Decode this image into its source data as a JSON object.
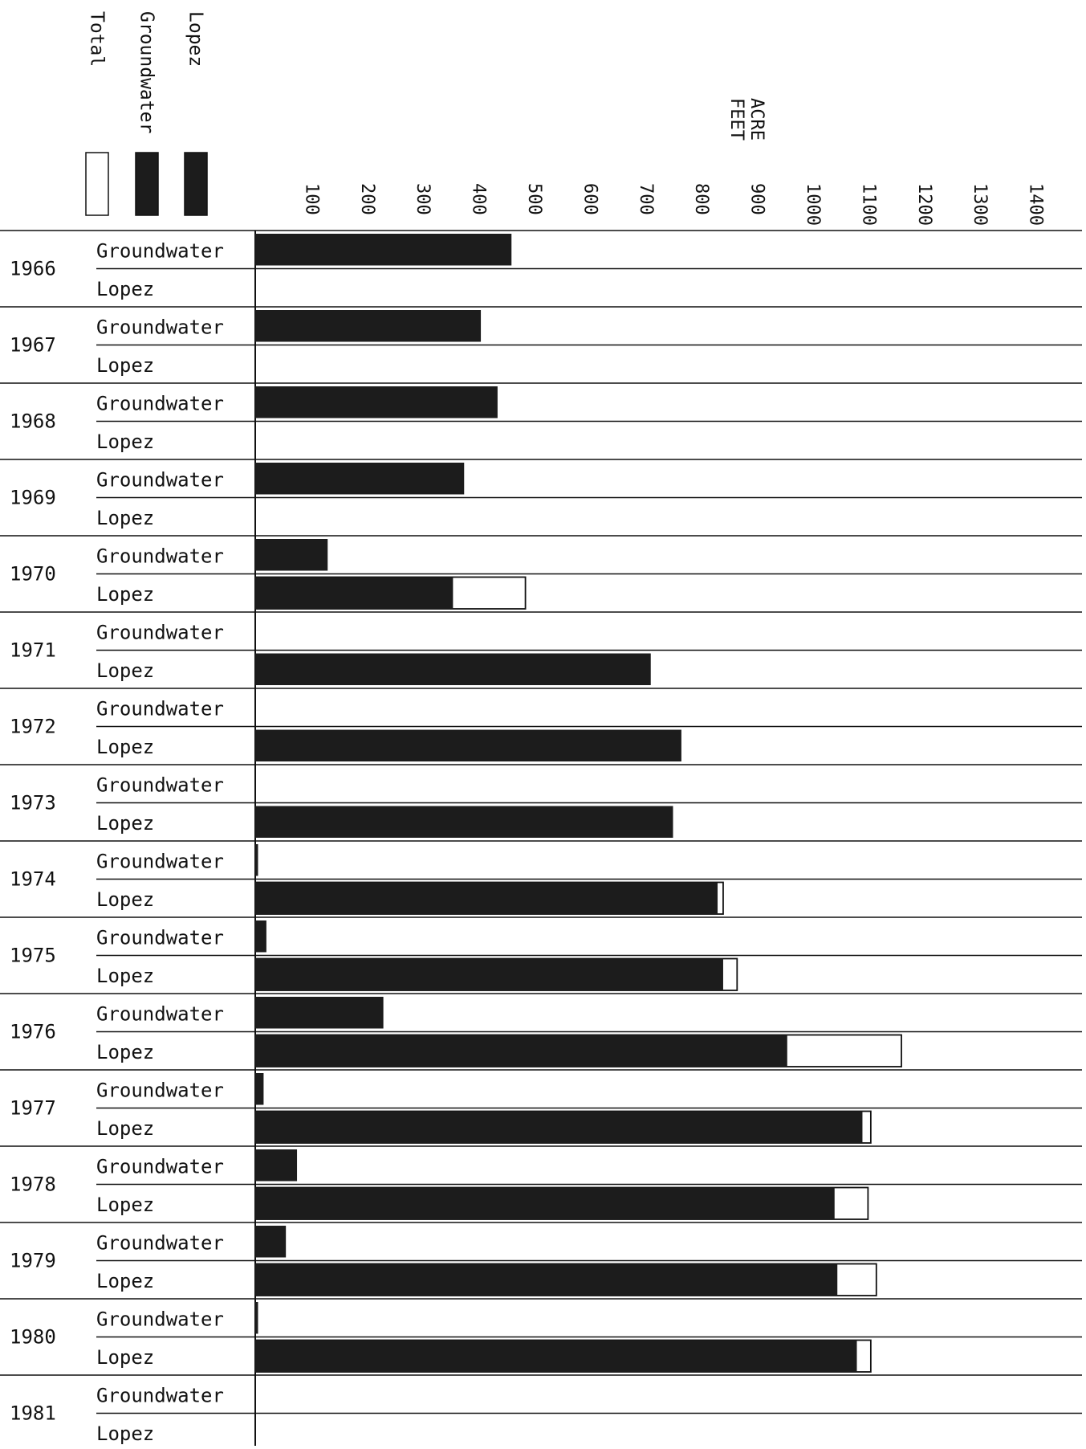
{
  "chart_data": {
    "type": "bar",
    "orientation": "horizontal",
    "xlabel": "ACRE FEET",
    "xlim": [
      0,
      1400
    ],
    "ticks": [
      100,
      200,
      300,
      400,
      500,
      600,
      700,
      800,
      900,
      1000,
      1100,
      1200,
      1300,
      1400
    ],
    "legend": {
      "placement": "top-left",
      "entries": [
        {
          "label": "Total",
          "fill": "white"
        },
        {
          "label": "Groundwater",
          "fill": "dark"
        },
        {
          "label": "Lopez",
          "fill": "dark"
        }
      ]
    },
    "row_labels": {
      "groundwater": "Groundwater",
      "lopez": "Lopez"
    },
    "years": [
      {
        "year": "1966",
        "groundwater": 460,
        "groundwater_total": 460,
        "lopez": 0,
        "lopez_total": 0
      },
      {
        "year": "1967",
        "groundwater": 405,
        "groundwater_total": 405,
        "lopez": 0,
        "lopez_total": 0
      },
      {
        "year": "1968",
        "groundwater": 435,
        "groundwater_total": 435,
        "lopez": 0,
        "lopez_total": 0
      },
      {
        "year": "1969",
        "groundwater": 375,
        "groundwater_total": 375,
        "lopez": 0,
        "lopez_total": 0
      },
      {
        "year": "1970",
        "groundwater": 130,
        "groundwater_total": 130,
        "lopez": 355,
        "lopez_total": 485
      },
      {
        "year": "1971",
        "groundwater": 0,
        "groundwater_total": 0,
        "lopez": 710,
        "lopez_total": 710
      },
      {
        "year": "1972",
        "groundwater": 0,
        "groundwater_total": 0,
        "lopez": 765,
        "lopez_total": 765
      },
      {
        "year": "1973",
        "groundwater": 0,
        "groundwater_total": 0,
        "lopez": 750,
        "lopez_total": 750
      },
      {
        "year": "1974",
        "groundwater": 5,
        "groundwater_total": 5,
        "lopez": 830,
        "lopez_total": 840
      },
      {
        "year": "1975",
        "groundwater": 20,
        "groundwater_total": 20,
        "lopez": 840,
        "lopez_total": 865
      },
      {
        "year": "1976",
        "groundwater": 230,
        "groundwater_total": 230,
        "lopez": 955,
        "lopez_total": 1160
      },
      {
        "year": "1977",
        "groundwater": 15,
        "groundwater_total": 15,
        "lopez": 1090,
        "lopez_total": 1105
      },
      {
        "year": "1978",
        "groundwater": 75,
        "groundwater_total": 75,
        "lopez": 1040,
        "lopez_total": 1100
      },
      {
        "year": "1979",
        "groundwater": 55,
        "groundwater_total": 55,
        "lopez": 1045,
        "lopez_total": 1115
      },
      {
        "year": "1980",
        "groundwater": 5,
        "groundwater_total": 5,
        "lopez": 1080,
        "lopez_total": 1105
      },
      {
        "year": "1981",
        "groundwater": 0,
        "groundwater_total": 0,
        "lopez": 0,
        "lopez_total": 0
      }
    ]
  },
  "colors": {
    "bar_fill": "#1c1c1c",
    "total_fill": "#ffffff",
    "line": "#111111",
    "background": "#ffffff"
  }
}
